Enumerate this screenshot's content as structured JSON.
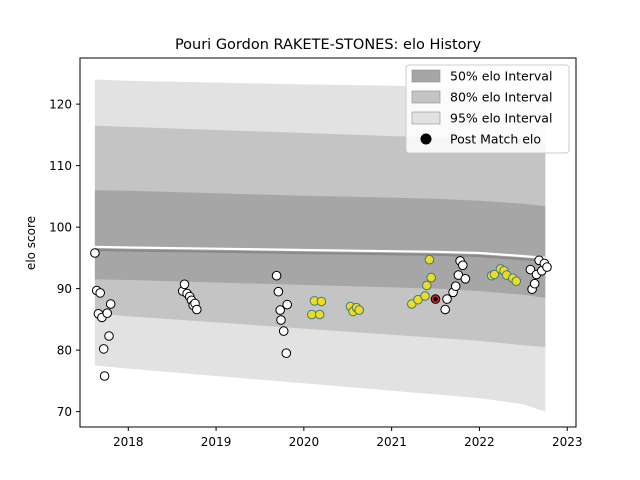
{
  "chart_data": {
    "type": "scatter",
    "title": "Pouri Gordon RAKETE-STONES: elo History",
    "xlabel": "",
    "ylabel": "elo score",
    "xlim": [
      2017.45,
      2023.1
    ],
    "ylim": [
      67.5,
      127.5
    ],
    "x_ticks": [
      2018,
      2019,
      2020,
      2021,
      2022,
      2023
    ],
    "y_ticks": [
      70,
      80,
      90,
      100,
      110,
      120
    ],
    "legend_position": "top-right",
    "legend": [
      {
        "label": "50% elo Interval",
        "kind": "band50"
      },
      {
        "label": "80% elo Interval",
        "kind": "band80"
      },
      {
        "label": "95% elo Interval",
        "kind": "band95"
      },
      {
        "label": "Post Match elo",
        "kind": "marker"
      }
    ],
    "colors": {
      "band50": "#a6a6a6",
      "band80": "#c4c4c4",
      "band95": "#e2e2e2",
      "mean_line": "#8a8a8a",
      "point_default": "#ffffff",
      "point_yellow": "#f0dc1e",
      "point_red": "#d42a2a",
      "point_edge_default": "#000000",
      "point_edge_yellow": "#3c7a8c",
      "marker_legend": "#000000"
    },
    "bands": {
      "x": [
        2017.62,
        2018.0,
        2019.0,
        2020.0,
        2021.0,
        2021.5,
        2022.0,
        2022.5,
        2022.75
      ],
      "mean": [
        96.3,
        96.2,
        96.0,
        95.8,
        95.6,
        95.5,
        95.3,
        94.8,
        94.5
      ],
      "p50_low": [
        91.5,
        91.4,
        91.0,
        90.6,
        90.2,
        90.0,
        89.6,
        89.0,
        88.5
      ],
      "p50_high": [
        106.0,
        105.9,
        105.5,
        105.1,
        104.8,
        104.6,
        104.3,
        103.8,
        103.4
      ],
      "p80_low": [
        86.0,
        85.5,
        84.5,
        83.5,
        82.5,
        82.0,
        81.5,
        80.8,
        80.5
      ],
      "p80_high": [
        116.5,
        116.3,
        115.8,
        115.3,
        114.8,
        114.6,
        114.3,
        113.8,
        113.5
      ],
      "p95_low": [
        77.5,
        77.0,
        75.8,
        74.6,
        73.4,
        72.8,
        72.2,
        71.2,
        70.0
      ],
      "p95_high": [
        124.0,
        123.8,
        123.5,
        123.2,
        123.0,
        122.8,
        122.5,
        122.0,
        121.8
      ]
    },
    "points": [
      {
        "x": 2017.62,
        "y": 95.8,
        "c": "default"
      },
      {
        "x": 2017.64,
        "y": 89.7,
        "c": "default"
      },
      {
        "x": 2017.66,
        "y": 85.9,
        "c": "default"
      },
      {
        "x": 2017.68,
        "y": 89.3,
        "c": "default"
      },
      {
        "x": 2017.7,
        "y": 85.3,
        "c": "default"
      },
      {
        "x": 2017.72,
        "y": 80.2,
        "c": "default"
      },
      {
        "x": 2017.73,
        "y": 75.8,
        "c": "default"
      },
      {
        "x": 2017.76,
        "y": 86.0,
        "c": "default"
      },
      {
        "x": 2017.78,
        "y": 82.3,
        "c": "default"
      },
      {
        "x": 2017.8,
        "y": 87.5,
        "c": "default"
      },
      {
        "x": 2018.62,
        "y": 89.6,
        "c": "default"
      },
      {
        "x": 2018.64,
        "y": 90.7,
        "c": "default"
      },
      {
        "x": 2018.67,
        "y": 89.2,
        "c": "default"
      },
      {
        "x": 2018.7,
        "y": 88.7,
        "c": "default"
      },
      {
        "x": 2018.72,
        "y": 88.1,
        "c": "default"
      },
      {
        "x": 2018.74,
        "y": 87.3,
        "c": "default"
      },
      {
        "x": 2018.76,
        "y": 87.6,
        "c": "default"
      },
      {
        "x": 2018.78,
        "y": 86.6,
        "c": "default"
      },
      {
        "x": 2019.69,
        "y": 92.1,
        "c": "default"
      },
      {
        "x": 2019.71,
        "y": 89.5,
        "c": "default"
      },
      {
        "x": 2019.73,
        "y": 86.5,
        "c": "default"
      },
      {
        "x": 2019.74,
        "y": 84.9,
        "c": "default"
      },
      {
        "x": 2019.77,
        "y": 83.1,
        "c": "default"
      },
      {
        "x": 2019.8,
        "y": 79.5,
        "c": "default"
      },
      {
        "x": 2019.81,
        "y": 87.4,
        "c": "default"
      },
      {
        "x": 2020.09,
        "y": 85.8,
        "c": "yellow"
      },
      {
        "x": 2020.12,
        "y": 88.0,
        "c": "yellow"
      },
      {
        "x": 2020.18,
        "y": 85.8,
        "c": "yellow"
      },
      {
        "x": 2020.2,
        "y": 87.9,
        "c": "yellow"
      },
      {
        "x": 2020.53,
        "y": 87.1,
        "c": "yellow"
      },
      {
        "x": 2020.56,
        "y": 86.3,
        "c": "yellow"
      },
      {
        "x": 2020.6,
        "y": 86.9,
        "c": "yellow"
      },
      {
        "x": 2020.63,
        "y": 86.5,
        "c": "yellow"
      },
      {
        "x": 2021.23,
        "y": 87.5,
        "c": "yellow"
      },
      {
        "x": 2021.3,
        "y": 88.2,
        "c": "yellow"
      },
      {
        "x": 2021.38,
        "y": 88.8,
        "c": "yellow"
      },
      {
        "x": 2021.4,
        "y": 90.5,
        "c": "yellow"
      },
      {
        "x": 2021.43,
        "y": 94.7,
        "c": "yellow"
      },
      {
        "x": 2021.45,
        "y": 91.8,
        "c": "yellow"
      },
      {
        "x": 2021.5,
        "y": 88.3,
        "c": "red"
      },
      {
        "x": 2021.61,
        "y": 86.6,
        "c": "default"
      },
      {
        "x": 2021.63,
        "y": 88.3,
        "c": "default"
      },
      {
        "x": 2021.7,
        "y": 89.4,
        "c": "default"
      },
      {
        "x": 2021.73,
        "y": 90.4,
        "c": "default"
      },
      {
        "x": 2021.76,
        "y": 92.2,
        "c": "default"
      },
      {
        "x": 2021.78,
        "y": 94.5,
        "c": "default"
      },
      {
        "x": 2021.81,
        "y": 93.8,
        "c": "default"
      },
      {
        "x": 2021.84,
        "y": 91.6,
        "c": "default"
      },
      {
        "x": 2022.14,
        "y": 92.1,
        "c": "yellow"
      },
      {
        "x": 2022.17,
        "y": 92.3,
        "c": "yellow"
      },
      {
        "x": 2022.24,
        "y": 93.2,
        "c": "yellow"
      },
      {
        "x": 2022.28,
        "y": 92.9,
        "c": "yellow"
      },
      {
        "x": 2022.31,
        "y": 92.2,
        "c": "yellow"
      },
      {
        "x": 2022.38,
        "y": 91.7,
        "c": "yellow"
      },
      {
        "x": 2022.42,
        "y": 91.2,
        "c": "yellow"
      },
      {
        "x": 2022.58,
        "y": 93.1,
        "c": "default"
      },
      {
        "x": 2022.6,
        "y": 89.9,
        "c": "default"
      },
      {
        "x": 2022.63,
        "y": 90.8,
        "c": "default"
      },
      {
        "x": 2022.65,
        "y": 92.3,
        "c": "default"
      },
      {
        "x": 2022.68,
        "y": 94.6,
        "c": "default"
      },
      {
        "x": 2022.71,
        "y": 92.9,
        "c": "default"
      },
      {
        "x": 2022.74,
        "y": 94.1,
        "c": "default"
      },
      {
        "x": 2022.77,
        "y": 93.5,
        "c": "default"
      }
    ]
  }
}
